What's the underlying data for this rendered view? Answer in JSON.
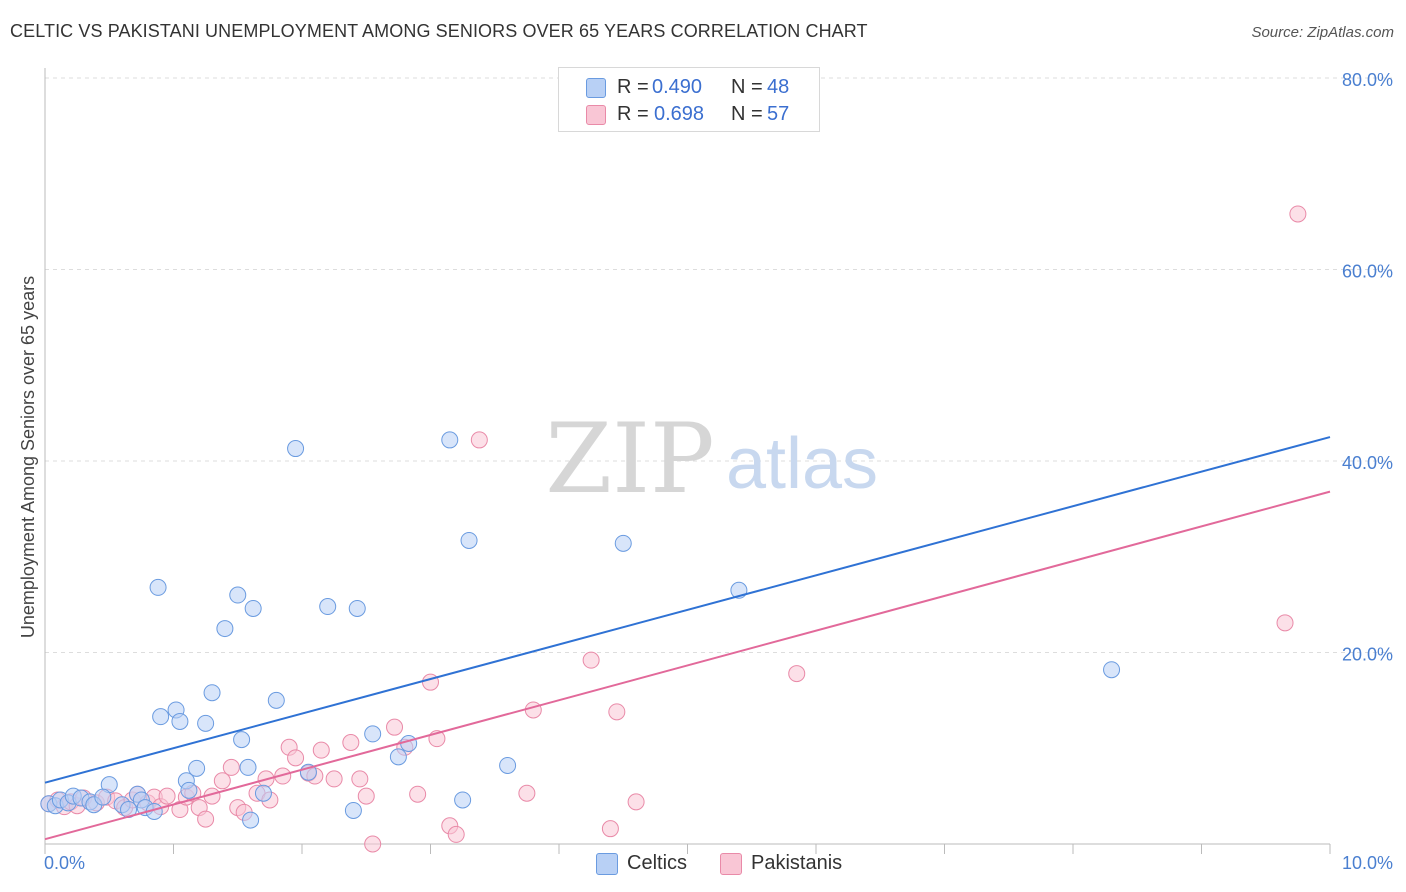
{
  "title": "CELTIC VS PAKISTANI UNEMPLOYMENT AMONG SENIORS OVER 65 YEARS CORRELATION CHART",
  "source": "Source: ZipAtlas.com",
  "watermark": {
    "zip": "ZIP",
    "atlas": "atlas"
  },
  "legend": {
    "rows": [
      {
        "r_label": "R =",
        "r_value": "0.490",
        "n_label": "N =",
        "n_value": "48"
      },
      {
        "r_label": "R =",
        "r_value": "0.698",
        "n_label": "N =",
        "n_value": "57"
      }
    ]
  },
  "bottom_legend": {
    "celtics": "Celtics",
    "pakistanis": "Pakistanis"
  },
  "colors": {
    "celtic_fill": "#b8d0f5",
    "celtic_stroke": "#6a9be0",
    "celtic_line": "#2f72d4",
    "pakistani_fill": "#f9c6d5",
    "pakistani_stroke": "#e98aa8",
    "pakistani_line": "#e2699a",
    "grid": "#dddddd",
    "tick_label": "#4a7fd0"
  },
  "chart_data": {
    "type": "scatter",
    "title": "CELTIC VS PAKISTANI UNEMPLOYMENT AMONG SENIORS OVER 65 YEARS CORRELATION CHART",
    "xlabel": "",
    "ylabel": "Unemployment Among Seniors over 65 years",
    "xlim": [
      0,
      10
    ],
    "ylim": [
      0,
      80
    ],
    "x_tick_labels": [
      "0.0%",
      "10.0%"
    ],
    "y_tick_labels": [
      "20.0%",
      "40.0%",
      "60.0%",
      "80.0%"
    ],
    "y_ticks": [
      20,
      40,
      60,
      80
    ],
    "grid": true,
    "legend_position": "top-center",
    "series": [
      {
        "name": "Celtics",
        "r": 0.49,
        "n": 48,
        "trend": {
          "x": [
            0,
            10
          ],
          "y": [
            6.4,
            42.5
          ]
        },
        "points": [
          [
            0.03,
            4.2
          ],
          [
            0.08,
            4.0
          ],
          [
            0.12,
            4.6
          ],
          [
            0.18,
            4.3
          ],
          [
            0.22,
            5.0
          ],
          [
            0.28,
            4.8
          ],
          [
            0.35,
            4.4
          ],
          [
            0.38,
            4.1
          ],
          [
            0.5,
            6.2
          ],
          [
            0.45,
            4.9
          ],
          [
            0.6,
            4.1
          ],
          [
            0.65,
            3.6
          ],
          [
            0.72,
            5.2
          ],
          [
            0.75,
            4.6
          ],
          [
            0.78,
            3.8
          ],
          [
            0.85,
            3.4
          ],
          [
            0.88,
            26.8
          ],
          [
            0.9,
            13.3
          ],
          [
            1.02,
            14.0
          ],
          [
            1.05,
            12.8
          ],
          [
            1.1,
            6.6
          ],
          [
            1.12,
            5.6
          ],
          [
            1.18,
            7.9
          ],
          [
            1.25,
            12.6
          ],
          [
            1.3,
            15.8
          ],
          [
            1.4,
            22.5
          ],
          [
            1.5,
            26.0
          ],
          [
            1.53,
            10.9
          ],
          [
            1.58,
            8.0
          ],
          [
            1.6,
            2.5
          ],
          [
            1.62,
            24.6
          ],
          [
            1.7,
            5.3
          ],
          [
            1.8,
            15.0
          ],
          [
            1.95,
            41.3
          ],
          [
            2.05,
            7.5
          ],
          [
            2.2,
            24.8
          ],
          [
            2.4,
            3.5
          ],
          [
            2.43,
            24.6
          ],
          [
            2.55,
            11.5
          ],
          [
            2.75,
            9.1
          ],
          [
            2.83,
            10.5
          ],
          [
            3.15,
            42.2
          ],
          [
            3.25,
            4.6
          ],
          [
            3.3,
            31.7
          ],
          [
            3.6,
            8.2
          ],
          [
            4.5,
            31.4
          ],
          [
            5.4,
            26.5
          ],
          [
            8.3,
            18.2
          ]
        ]
      },
      {
        "name": "Pakistanis",
        "r": 0.698,
        "n": 57,
        "trend": {
          "x": [
            0,
            10
          ],
          "y": [
            0.5,
            36.8
          ]
        },
        "points": [
          [
            0.03,
            4.2
          ],
          [
            0.1,
            4.6
          ],
          [
            0.15,
            3.9
          ],
          [
            0.2,
            4.4
          ],
          [
            0.25,
            4.0
          ],
          [
            0.3,
            4.8
          ],
          [
            0.4,
            4.3
          ],
          [
            0.48,
            4.9
          ],
          [
            0.55,
            4.5
          ],
          [
            0.62,
            3.8
          ],
          [
            0.68,
            4.6
          ],
          [
            0.72,
            5.2
          ],
          [
            0.8,
            4.3
          ],
          [
            0.85,
            4.9
          ],
          [
            0.9,
            3.9
          ],
          [
            0.95,
            5.0
          ],
          [
            1.05,
            3.6
          ],
          [
            1.1,
            4.9
          ],
          [
            1.15,
            5.3
          ],
          [
            1.2,
            3.8
          ],
          [
            1.25,
            2.6
          ],
          [
            1.3,
            5.0
          ],
          [
            1.38,
            6.6
          ],
          [
            1.45,
            8.0
          ],
          [
            1.5,
            3.8
          ],
          [
            1.55,
            3.3
          ],
          [
            1.65,
            5.3
          ],
          [
            1.72,
            6.8
          ],
          [
            1.75,
            4.6
          ],
          [
            1.85,
            7.1
          ],
          [
            1.9,
            10.1
          ],
          [
            1.95,
            9.0
          ],
          [
            2.05,
            7.4
          ],
          [
            2.1,
            7.1
          ],
          [
            2.15,
            9.8
          ],
          [
            2.25,
            6.8
          ],
          [
            2.38,
            10.6
          ],
          [
            2.45,
            6.8
          ],
          [
            2.5,
            5.0
          ],
          [
            2.55,
            0.0
          ],
          [
            2.72,
            12.2
          ],
          [
            2.8,
            10.1
          ],
          [
            2.9,
            5.2
          ],
          [
            3.0,
            16.9
          ],
          [
            3.05,
            11.0
          ],
          [
            3.15,
            1.9
          ],
          [
            3.2,
            1.0
          ],
          [
            3.38,
            42.2
          ],
          [
            3.75,
            5.3
          ],
          [
            3.8,
            14.0
          ],
          [
            4.25,
            19.2
          ],
          [
            4.4,
            1.6
          ],
          [
            4.45,
            13.8
          ],
          [
            4.6,
            4.4
          ],
          [
            5.85,
            17.8
          ],
          [
            9.65,
            23.1
          ],
          [
            9.75,
            65.8
          ]
        ]
      }
    ]
  }
}
